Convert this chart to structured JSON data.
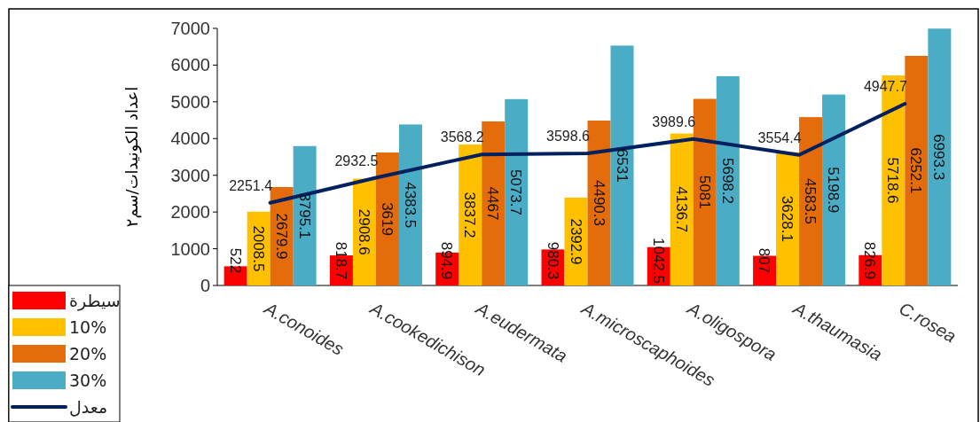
{
  "chart_data": {
    "type": "bar",
    "ylabel": "اعداد الكونيدات/سم٢",
    "categories": [
      "A.conoides",
      "A.cookedichison",
      "A.eudermata",
      "A.microscaphoides",
      "A.oligospora",
      "A.thaumasia",
      "C.rosea"
    ],
    "series": [
      {
        "name": "سيطرة",
        "color": "#ff0000",
        "values": [
          522,
          818.7,
          894.9,
          980.3,
          1042.5,
          807,
          826.9
        ]
      },
      {
        "name": "10%",
        "color": "#ffc000",
        "values": [
          2008.5,
          2908.6,
          3837.2,
          2392.9,
          4136.7,
          3628.1,
          5718.6
        ]
      },
      {
        "name": "20%",
        "color": "#e46c0a",
        "values": [
          2679.9,
          3619,
          4467,
          4490.3,
          5081,
          4583.5,
          6252.1
        ]
      },
      {
        "name": "30%",
        "color": "#4bacc6",
        "values": [
          3795.1,
          4383.5,
          5073.7,
          6531,
          5698.2,
          5198.9,
          6993.3
        ]
      },
      {
        "name": "معدل",
        "type": "line",
        "color": "#002060",
        "values": [
          2251.4,
          2932.5,
          3568.2,
          3598.6,
          3989.6,
          3554.4,
          4947.7
        ]
      }
    ],
    "ylim": [
      0,
      7000
    ],
    "yticks": [
      0,
      1000,
      2000,
      3000,
      4000,
      5000,
      6000,
      7000
    ],
    "data_labels": true,
    "legend": "bottom left"
  }
}
